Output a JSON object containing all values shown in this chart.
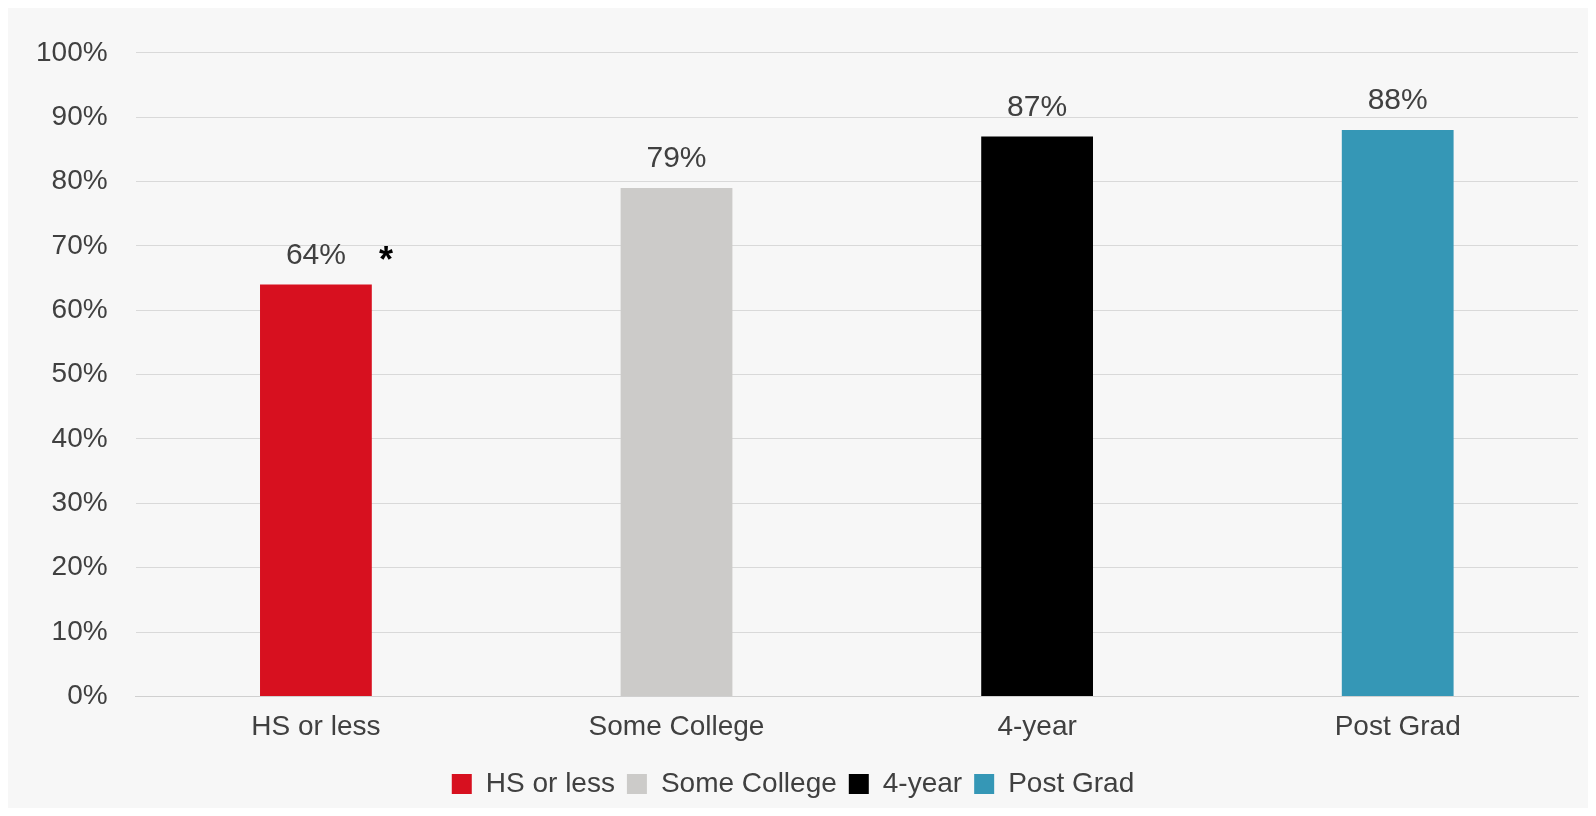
{
  "chart_data": {
    "type": "bar",
    "categories": [
      "HS or less",
      "Some College",
      "4-year",
      "Post Grad"
    ],
    "series": [
      {
        "name": "HS or less",
        "color": "#d7101f",
        "values": [
          64,
          null,
          null,
          null
        ],
        "value_labels": [
          "64%",
          null,
          null,
          null
        ]
      },
      {
        "name": "Some College",
        "color": "#cccbc9",
        "values": [
          null,
          79,
          null,
          null
        ],
        "value_labels": [
          null,
          "79%",
          null,
          null
        ]
      },
      {
        "name": "4-year",
        "color": "#000000",
        "values": [
          null,
          null,
          87,
          null
        ],
        "value_labels": [
          null,
          null,
          "87%",
          null
        ]
      },
      {
        "name": "Post Grad",
        "color": "#3597b6",
        "values": [
          null,
          null,
          null,
          88
        ],
        "value_labels": [
          null,
          null,
          null,
          "88%"
        ]
      }
    ],
    "annotations": [
      {
        "text": "*",
        "x": "HS or less",
        "y": 64
      }
    ],
    "ylim": [
      0,
      100
    ],
    "yticks": [
      {
        "value": 0,
        "label": "0%"
      },
      {
        "value": 10,
        "label": "10%"
      },
      {
        "value": 20,
        "label": "20%"
      },
      {
        "value": 30,
        "label": "30%"
      },
      {
        "value": 40,
        "label": "40%"
      },
      {
        "value": 50,
        "label": "50%"
      },
      {
        "value": 60,
        "label": "60%"
      },
      {
        "value": 70,
        "label": "70%"
      },
      {
        "value": 80,
        "label": "80%"
      },
      {
        "value": 90,
        "label": "90%"
      },
      {
        "value": 100,
        "label": "100%"
      }
    ],
    "grid": "y",
    "legend": "bottom"
  }
}
